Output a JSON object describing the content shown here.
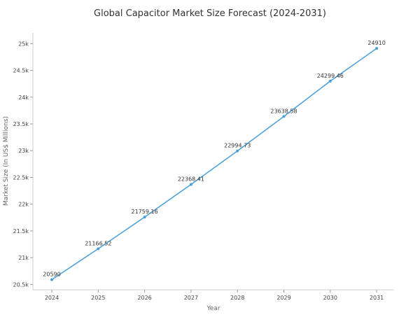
{
  "chart_data": {
    "type": "line",
    "title": "Global Capacitor Market Size Forecast (2024-2031)",
    "xlabel": "Year",
    "ylabel": "Market Size (In US$ Millions)",
    "x": [
      2024,
      2025,
      2026,
      2027,
      2028,
      2029,
      2030,
      2031
    ],
    "x_tick_labels": [
      "2024",
      "2025",
      "2026",
      "2027",
      "2028",
      "2029",
      "2030",
      "2031"
    ],
    "y_ticks": [
      20500,
      21000,
      21500,
      22000,
      22500,
      23000,
      23500,
      24000,
      24500,
      25000
    ],
    "y_tick_labels": [
      "20.5k",
      "21k",
      "21.5k",
      "22k",
      "22.5k",
      "23k",
      "23.5k",
      "24k",
      "24.5k",
      "25k"
    ],
    "ylim": [
      20400,
      25200
    ],
    "grid": false,
    "series": [
      {
        "values": [
          20590,
          21166.52,
          21759.16,
          22368.41,
          22994.73,
          23638.58,
          24299.46,
          24910
        ],
        "labels": [
          "20590",
          "21166.52",
          "21759.16",
          "22368.41",
          "22994.73",
          "23638.58",
          "24299.46",
          "24910"
        ],
        "color": "#4a9fd8"
      }
    ]
  }
}
